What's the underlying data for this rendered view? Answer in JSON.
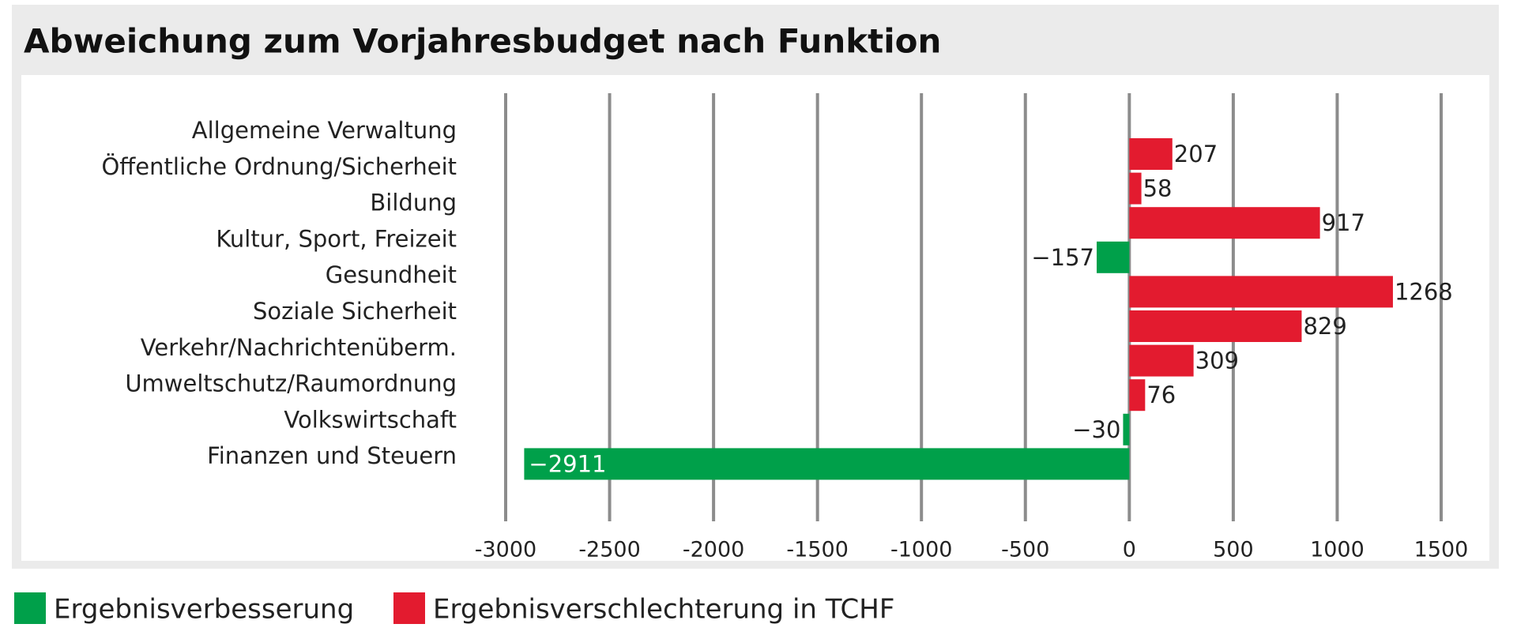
{
  "chart_data": {
    "type": "bar",
    "orientation": "horizontal",
    "title": "Abweichung zum Vorjahresbudget nach Funktion",
    "categories": [
      "Allgemeine Verwaltung",
      "Öffentliche Ordnung/Sicherheit",
      "Bildung",
      "Kultur, Sport, Freizeit",
      "Gesundheit",
      "Soziale Sicherheit",
      "Verkehr/Nachrichtenüberm.",
      "Umweltschutz/Raumordnung",
      "Volkswirtschaft",
      "Finanzen und Steuern"
    ],
    "series": [
      {
        "name": "Ergebnisverbesserung",
        "color": "#00a04a",
        "values": [
          null,
          null,
          null,
          -157,
          null,
          null,
          null,
          null,
          -30,
          -2911
        ],
        "value_labels": [
          null,
          null,
          null,
          "−157",
          null,
          null,
          null,
          null,
          "−30",
          "−2911"
        ]
      },
      {
        "name": "Ergebnisverschlechterung in TCHF",
        "color": "#e31b2f",
        "values": [
          207,
          58,
          917,
          null,
          1268,
          829,
          309,
          76,
          null,
          null
        ]
      }
    ],
    "xlim": [
      -3000,
      1500
    ],
    "xticks": [
      -3000,
      -2500,
      -2000,
      -1500,
      -1000,
      -500,
      0,
      500,
      1000,
      1500
    ],
    "grid": true
  }
}
